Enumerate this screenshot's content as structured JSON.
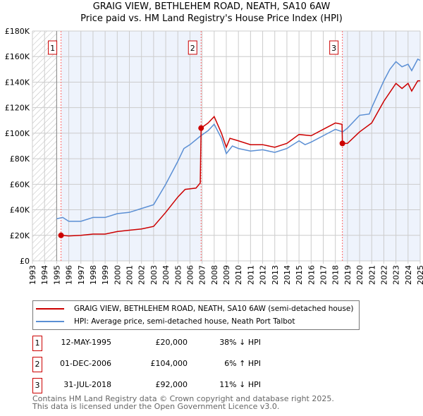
{
  "chart_data": {
    "type": "line",
    "title": "GRAIG VIEW, BETHLEHEM ROAD, NEATH, SA10 6AW",
    "subtitle": "Price paid vs. HM Land Registry's House Price Index (HPI)",
    "xlim": [
      1993,
      2025
    ],
    "ylim": [
      0,
      180000
    ],
    "x_ticks": [
      "1993",
      "1994",
      "1995",
      "1996",
      "1997",
      "1998",
      "1999",
      "2000",
      "2001",
      "2002",
      "2003",
      "2004",
      "2005",
      "2006",
      "2007",
      "2008",
      "2009",
      "2010",
      "2011",
      "2012",
      "2013",
      "2014",
      "2015",
      "2016",
      "2017",
      "2018",
      "2019",
      "2020",
      "2021",
      "2022",
      "2023",
      "2024",
      "2025"
    ],
    "y_ticks": [
      {
        "v": 0,
        "label": "£0"
      },
      {
        "v": 20000,
        "label": "£20K"
      },
      {
        "v": 40000,
        "label": "£40K"
      },
      {
        "v": 60000,
        "label": "£60K"
      },
      {
        "v": 80000,
        "label": "£80K"
      },
      {
        "v": 100000,
        "label": "£100K"
      },
      {
        "v": 120000,
        "label": "£120K"
      },
      {
        "v": 140000,
        "label": "£140K"
      },
      {
        "v": 160000,
        "label": "£160K"
      },
      {
        "v": 180000,
        "label": "£180K"
      }
    ],
    "grid": true,
    "series": [
      {
        "name": "GRAIG VIEW, BETHLEHEM ROAD, NEATH, SA10 6AW (semi-detached house)",
        "color": "#cc0000",
        "x": [
          1995.36,
          1996,
          1997,
          1998,
          1999,
          2000,
          2001,
          2002,
          2003,
          2004,
          2005,
          2005.6,
          2006.5,
          2006.85,
          2006.92,
          2007.5,
          2008,
          2008.6,
          2009,
          2009.3,
          2010,
          2011,
          2012,
          2013,
          2014,
          2015,
          2016,
          2017,
          2018,
          2018.55,
          2018.58,
          2019,
          2020,
          2021,
          2022,
          2023,
          2023.5,
          2024,
          2024.3,
          2024.8,
          2025
        ],
        "y": [
          20000,
          19500,
          20000,
          21000,
          21000,
          23000,
          24000,
          25000,
          27000,
          38000,
          50000,
          56000,
          57000,
          61000,
          104000,
          108000,
          113000,
          100000,
          89000,
          96000,
          94000,
          91000,
          91000,
          89000,
          92000,
          99000,
          98000,
          103000,
          108000,
          107000,
          92000,
          92000,
          101000,
          108000,
          125000,
          139000,
          135000,
          139000,
          133000,
          141000,
          141000
        ]
      },
      {
        "name": "HPI: Average price, semi-detached house, Neath Port Talbot",
        "color": "#5b8fd4",
        "x": [
          1995,
          1995.5,
          1996,
          1997,
          1998,
          1999,
          2000,
          2001,
          2002,
          2003,
          2004,
          2005,
          2005.5,
          2006,
          2006.9,
          2007.5,
          2008,
          2008.6,
          2009,
          2009.5,
          2010,
          2011,
          2012,
          2013,
          2014,
          2015,
          2015.5,
          2016,
          2017,
          2018,
          2018.6,
          2019,
          2020,
          2020.8,
          2021,
          2022,
          2022.5,
          2023,
          2023.5,
          2024,
          2024.3,
          2024.8,
          2025
        ],
        "y": [
          33000,
          34000,
          31000,
          31000,
          34000,
          34000,
          37000,
          38000,
          41000,
          44000,
          60000,
          78000,
          88000,
          91000,
          98000,
          102000,
          107000,
          96000,
          84000,
          90000,
          88000,
          86000,
          87000,
          85000,
          88000,
          94000,
          91000,
          93000,
          98000,
          103000,
          101000,
          104000,
          114000,
          115000,
          120000,
          141000,
          150000,
          156000,
          152000,
          154000,
          149000,
          158000,
          157000
        ]
      }
    ],
    "sales": [
      {
        "label": "1",
        "x": 1995.36,
        "y": 20000,
        "date": "12-MAY-1995",
        "price": "£20,000",
        "hpi": "38% ↓ HPI"
      },
      {
        "label": "2",
        "x": 2006.92,
        "y": 104000,
        "date": "01-DEC-2006",
        "price": "£104,000",
        "hpi": "6% ↑ HPI"
      },
      {
        "label": "3",
        "x": 2018.58,
        "y": 92000,
        "date": "31-JUL-2018",
        "price": "£92,000",
        "hpi": "11% ↓ HPI"
      }
    ],
    "legend_position": "below"
  },
  "footer": {
    "line1": "Contains HM Land Registry data © Crown copyright and database right 2025.",
    "line2": "This data is licensed under the Open Government Licence v3.0."
  }
}
